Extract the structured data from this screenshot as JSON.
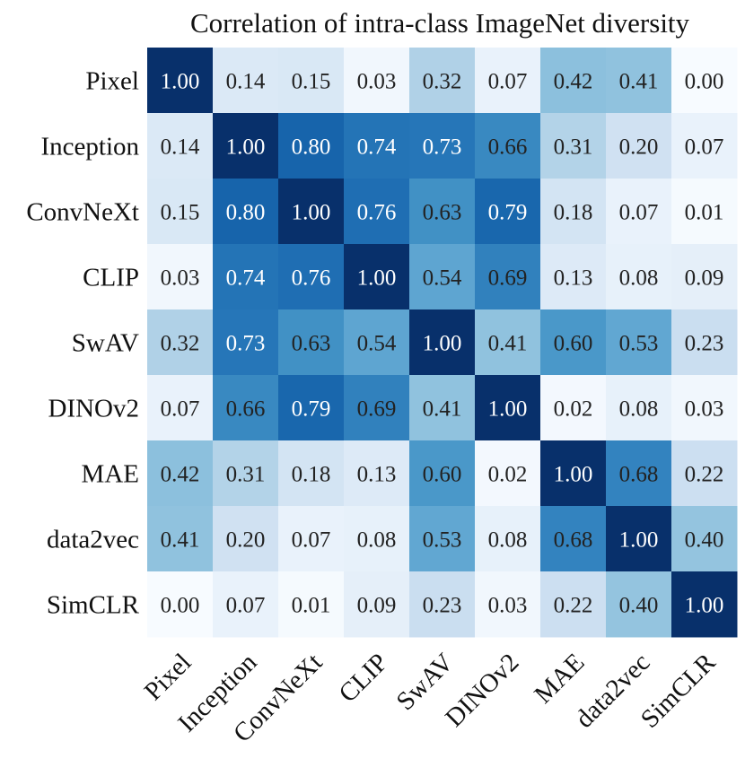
{
  "chart_data": {
    "type": "heatmap",
    "title": "Correlation of intra-class ImageNet diversity",
    "xlabel": "",
    "ylabel": "",
    "row_labels": [
      "Pixel",
      "Inception",
      "ConvNeXt",
      "CLIP",
      "SwAV",
      "DINOv2",
      "MAE",
      "data2vec",
      "SimCLR"
    ],
    "col_labels": [
      "Pixel",
      "Inception",
      "ConvNeXt",
      "CLIP",
      "SwAV",
      "DINOv2",
      "MAE",
      "data2vec",
      "SimCLR"
    ],
    "values": [
      [
        1.0,
        0.14,
        0.15,
        0.03,
        0.32,
        0.07,
        0.42,
        0.41,
        0.0
      ],
      [
        0.14,
        1.0,
        0.8,
        0.74,
        0.73,
        0.66,
        0.31,
        0.2,
        0.07
      ],
      [
        0.15,
        0.8,
        1.0,
        0.76,
        0.63,
        0.79,
        0.18,
        0.07,
        0.01
      ],
      [
        0.03,
        0.74,
        0.76,
        1.0,
        0.54,
        0.69,
        0.13,
        0.08,
        0.09
      ],
      [
        0.32,
        0.73,
        0.63,
        0.54,
        1.0,
        0.41,
        0.6,
        0.53,
        0.23
      ],
      [
        0.07,
        0.66,
        0.79,
        0.69,
        0.41,
        1.0,
        0.02,
        0.08,
        0.03
      ],
      [
        0.42,
        0.31,
        0.18,
        0.13,
        0.6,
        0.02,
        1.0,
        0.68,
        0.22
      ],
      [
        0.41,
        0.2,
        0.07,
        0.08,
        0.53,
        0.08,
        0.68,
        1.0,
        0.4
      ],
      [
        0.0,
        0.07,
        0.01,
        0.09,
        0.23,
        0.03,
        0.22,
        0.4,
        1.0
      ]
    ],
    "value_range": [
      0,
      1
    ],
    "colormap": "Blues",
    "colormap_stops": [
      "#f7fbff",
      "#deebf7",
      "#c6dbef",
      "#9ecae1",
      "#6baed6",
      "#4292c6",
      "#2171b5",
      "#08519c",
      "#08306b"
    ],
    "text_color_dark": "#222222",
    "text_color_light": "#ffffff"
  }
}
